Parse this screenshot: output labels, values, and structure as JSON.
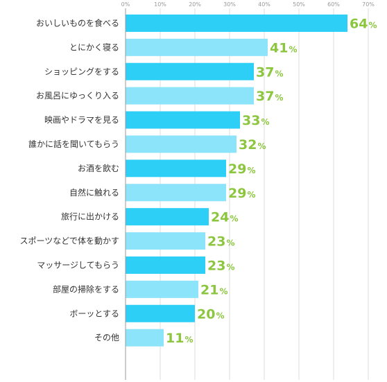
{
  "chart_data": {
    "type": "bar",
    "orientation": "horizontal",
    "categories": [
      "おいしいものを食べる",
      "とにかく寝る",
      "ショッピングをする",
      "お風呂にゆっくり入る",
      "映画やドラマを見る",
      "誰かに話を聞いてもらう",
      "お酒を飲む",
      "自然に触れる",
      "旅行に出かける",
      "スポーツなどで体を動かす",
      "マッサージしてもらう",
      "部屋の掃除をする",
      "ボーッとする",
      "その他"
    ],
    "values": [
      64,
      41,
      37,
      37,
      33,
      32,
      29,
      29,
      24,
      23,
      23,
      21,
      20,
      11
    ],
    "value_suffix": "%",
    "xlim": [
      0,
      70
    ],
    "ticks": [
      "0%",
      "10%",
      "20%",
      "30%",
      "40%",
      "50%",
      "60%",
      "70%"
    ],
    "grid": true,
    "colors": {
      "bar_primary": "#2dcff7",
      "bar_alternate": "#8ce4fb",
      "value_text": "#8cc63f",
      "grid": "#dddddd",
      "axis": "#999999"
    }
  }
}
